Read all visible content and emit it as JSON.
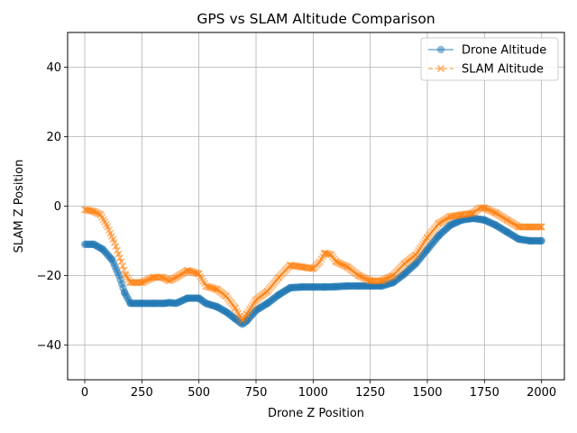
{
  "chart_data": {
    "type": "line",
    "title": "GPS vs SLAM Altitude Comparison",
    "xlabel": "Drone Z Position",
    "ylabel": "SLAM Z Position",
    "xlim": [
      -75,
      2100
    ],
    "ylim": [
      -50,
      50
    ],
    "x_ticks": [
      0,
      250,
      500,
      750,
      1000,
      1250,
      1500,
      1750,
      2000
    ],
    "y_ticks": [
      -40,
      -20,
      0,
      20,
      40
    ],
    "x_tick_labels": [
      "0",
      "250",
      "500",
      "750",
      "1000",
      "1250",
      "1500",
      "1750",
      "2000"
    ],
    "y_tick_labels": [
      "−40",
      "−20",
      "0",
      "20",
      "40"
    ],
    "grid": true,
    "legend_position": "top-right",
    "series": [
      {
        "name": "Drone Altitude",
        "color": "#1f77b4",
        "marker": "circle",
        "line": "solid",
        "points": [
          [
            0,
            -11
          ],
          [
            40,
            -11
          ],
          [
            80,
            -12.5
          ],
          [
            120,
            -15.5
          ],
          [
            150,
            -20
          ],
          [
            175,
            -25
          ],
          [
            200,
            -28
          ],
          [
            250,
            -28
          ],
          [
            300,
            -28
          ],
          [
            350,
            -28
          ],
          [
            370,
            -27.8
          ],
          [
            400,
            -28
          ],
          [
            450,
            -26.5
          ],
          [
            500,
            -26.5
          ],
          [
            530,
            -28
          ],
          [
            580,
            -29
          ],
          [
            620,
            -30.5
          ],
          [
            660,
            -32.5
          ],
          [
            690,
            -34
          ],
          [
            710,
            -33
          ],
          [
            750,
            -30
          ],
          [
            800,
            -28
          ],
          [
            850,
            -25.5
          ],
          [
            900,
            -23.5
          ],
          [
            950,
            -23.3
          ],
          [
            1000,
            -23.3
          ],
          [
            1050,
            -23.3
          ],
          [
            1100,
            -23.2
          ],
          [
            1150,
            -23
          ],
          [
            1200,
            -23
          ],
          [
            1250,
            -23
          ],
          [
            1300,
            -23
          ],
          [
            1350,
            -22
          ],
          [
            1400,
            -19.5
          ],
          [
            1450,
            -16.5
          ],
          [
            1500,
            -12.5
          ],
          [
            1550,
            -8.5
          ],
          [
            1600,
            -5.5
          ],
          [
            1650,
            -4
          ],
          [
            1700,
            -3.5
          ],
          [
            1750,
            -4
          ],
          [
            1800,
            -5.5
          ],
          [
            1850,
            -7.5
          ],
          [
            1900,
            -9.5
          ],
          [
            1950,
            -10
          ],
          [
            2000,
            -10
          ]
        ]
      },
      {
        "name": "SLAM Altitude",
        "color": "#ff7f0e",
        "marker": "x",
        "line": "dashed",
        "points": [
          [
            0,
            -1
          ],
          [
            40,
            -1.5
          ],
          [
            70,
            -2.5
          ],
          [
            100,
            -6
          ],
          [
            130,
            -10.5
          ],
          [
            160,
            -16
          ],
          [
            180,
            -20
          ],
          [
            200,
            -22
          ],
          [
            250,
            -22
          ],
          [
            300,
            -20.5
          ],
          [
            340,
            -20.5
          ],
          [
            370,
            -21.5
          ],
          [
            400,
            -20.5
          ],
          [
            450,
            -18.5
          ],
          [
            500,
            -19.5
          ],
          [
            530,
            -23
          ],
          [
            580,
            -24
          ],
          [
            620,
            -26
          ],
          [
            660,
            -29.5
          ],
          [
            690,
            -33
          ],
          [
            710,
            -31
          ],
          [
            750,
            -27
          ],
          [
            800,
            -24.5
          ],
          [
            850,
            -20.5
          ],
          [
            900,
            -17
          ],
          [
            950,
            -17.5
          ],
          [
            1000,
            -18
          ],
          [
            1030,
            -16
          ],
          [
            1050,
            -13.5
          ],
          [
            1080,
            -14
          ],
          [
            1100,
            -16
          ],
          [
            1150,
            -17.5
          ],
          [
            1200,
            -20
          ],
          [
            1250,
            -21.5
          ],
          [
            1300,
            -21.5
          ],
          [
            1350,
            -20
          ],
          [
            1400,
            -16.5
          ],
          [
            1450,
            -14
          ],
          [
            1500,
            -9
          ],
          [
            1550,
            -5
          ],
          [
            1600,
            -3
          ],
          [
            1650,
            -2.5
          ],
          [
            1700,
            -2
          ],
          [
            1730,
            -0.5
          ],
          [
            1750,
            -0.5
          ],
          [
            1800,
            -2
          ],
          [
            1850,
            -4
          ],
          [
            1900,
            -6
          ],
          [
            1950,
            -6
          ],
          [
            2000,
            -6
          ]
        ]
      }
    ]
  }
}
